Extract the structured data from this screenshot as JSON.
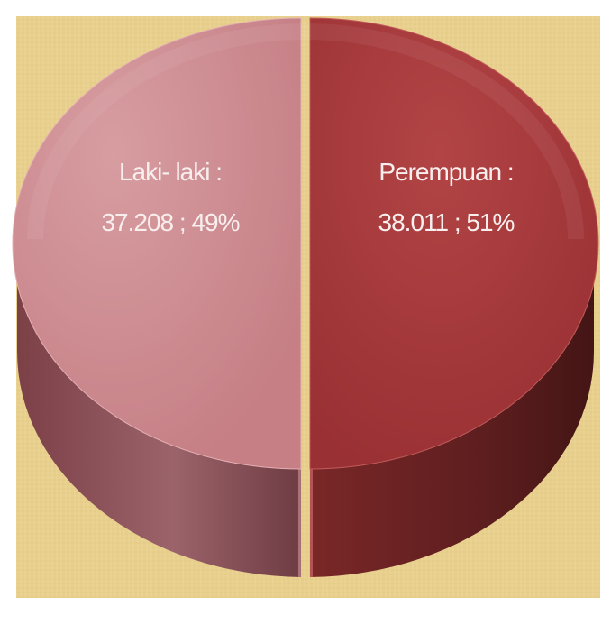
{
  "chart_data": {
    "type": "pie",
    "slices": [
      {
        "category": "Laki- laki",
        "value": 37208,
        "percent": 49,
        "label_line1": "Laki- laki :",
        "label_line2": "37.208 ; 49%",
        "color": "#cf8a8f",
        "side_color": "#8a4f55"
      },
      {
        "category": "Perempuan",
        "value": 38011,
        "percent": 51,
        "label_line1": "Perempuan :",
        "label_line2": "38.011 ; 51%",
        "color": "#a7373b",
        "side_color": "#5c1f20"
      }
    ],
    "background_color": "#e8cf8d"
  }
}
